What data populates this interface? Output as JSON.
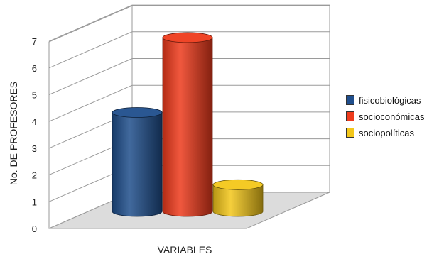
{
  "chart_data": {
    "type": "bar",
    "categories": [
      "fisicobiológicas",
      "socioconómicas",
      "sociopolíticas"
    ],
    "values": [
      4.3,
      7.1,
      1.6
    ],
    "xlabel": "VARIABLES",
    "ylabel": "No. DE PROFESORES",
    "ylim": [
      0,
      7
    ],
    "yticks": [
      "0",
      "1",
      "2",
      "3",
      "4",
      "5",
      "6",
      "7"
    ],
    "grid": true,
    "style": "3d-cylinder",
    "legend_position": "right",
    "colors": [
      "#1f4e8c",
      "#ee3b1c",
      "#f3c71a"
    ]
  }
}
